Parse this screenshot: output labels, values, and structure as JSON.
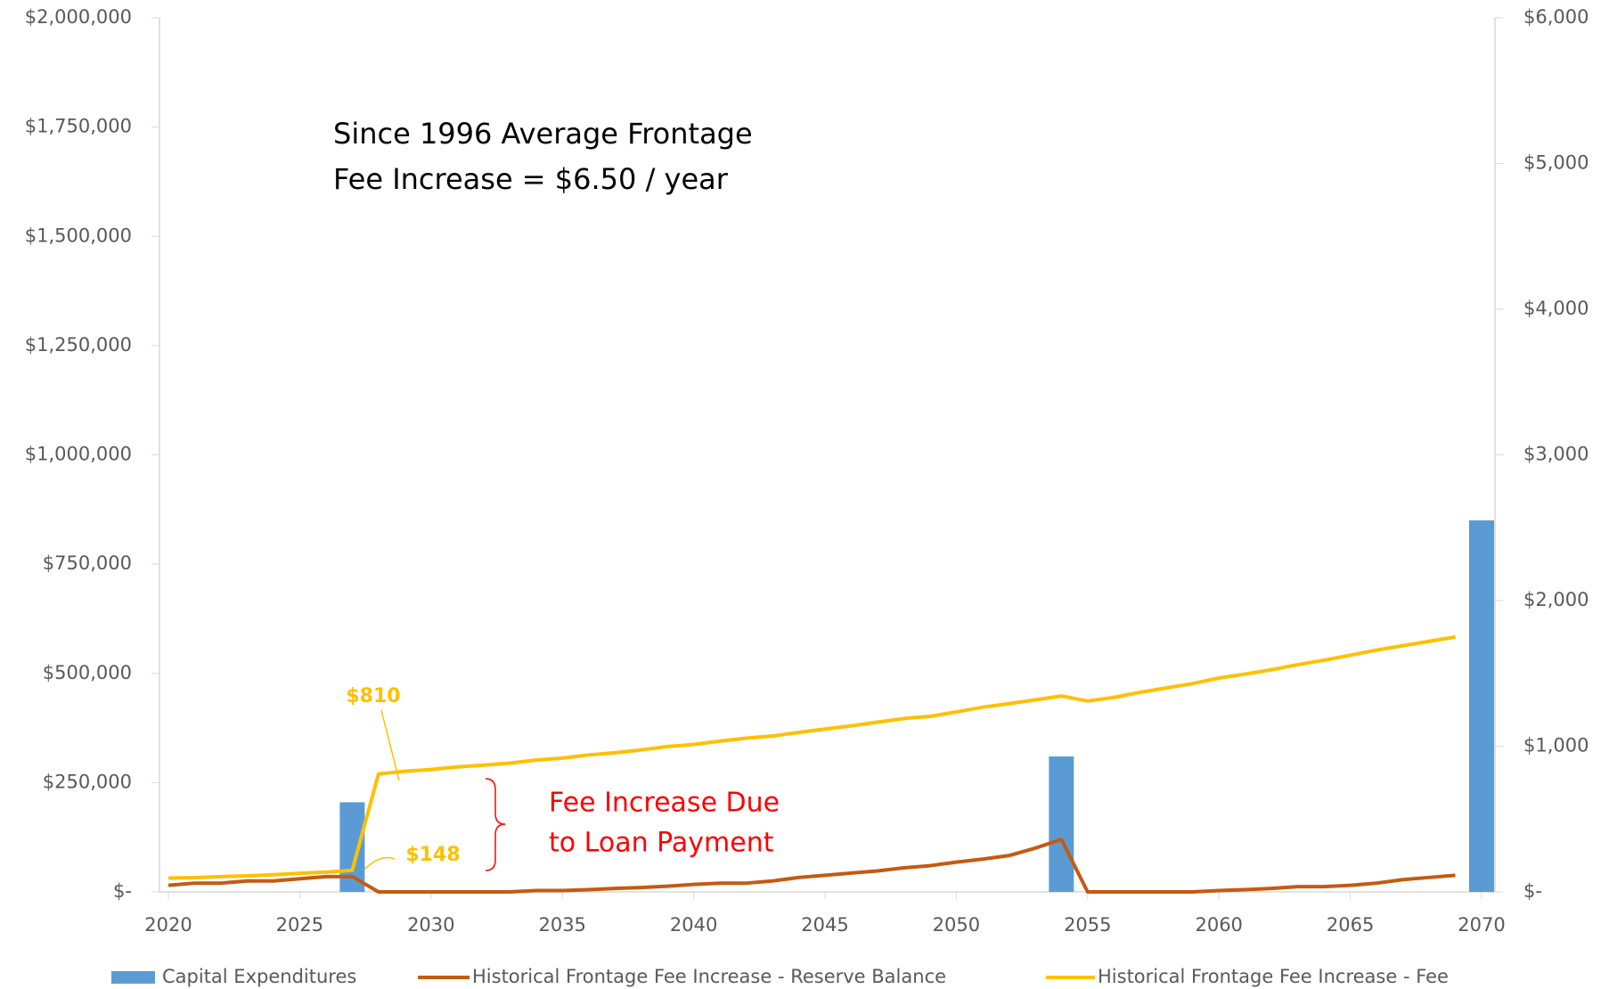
{
  "chart_data": {
    "type": "bar-line",
    "annotations": [
      [
        "Since 1996 Average Frontage",
        "Fee Increase = $6.50 / year"
      ],
      [
        "Fee Increase Due",
        "to Loan Payment"
      ]
    ],
    "xlim": [
      2020,
      2070
    ],
    "xticks": [
      2020,
      2025,
      2030,
      2035,
      2040,
      2045,
      2050,
      2055,
      2060,
      2065,
      2070
    ],
    "ylim": [
      0,
      2000000
    ],
    "yticks": [
      {
        "value": 0,
        "label": "$-"
      },
      {
        "value": 250000,
        "label": "$250,000"
      },
      {
        "value": 500000,
        "label": "$500,000"
      },
      {
        "value": 750000,
        "label": "$750,000"
      },
      {
        "value": 1000000,
        "label": "$1,000,000"
      },
      {
        "value": 1250000,
        "label": "$1,250,000"
      },
      {
        "value": 1500000,
        "label": "$1,500,000"
      },
      {
        "value": 1750000,
        "label": "$1,750,000"
      },
      {
        "value": 2000000,
        "label": "$2,000,000"
      }
    ],
    "y2lim": [
      0,
      6000
    ],
    "y2ticks": [
      {
        "value": 0,
        "label": "$-"
      },
      {
        "value": 1000,
        "label": "$1,000"
      },
      {
        "value": 2000,
        "label": "$2,000"
      },
      {
        "value": 3000,
        "label": "$3,000"
      },
      {
        "value": 4000,
        "label": "$4,000"
      },
      {
        "value": 5000,
        "label": "$5,000"
      },
      {
        "value": 6000,
        "label": "$6,000"
      }
    ],
    "legend": "bottom",
    "series": [
      {
        "name": "Capital Expenditures",
        "type": "bar",
        "color": "#5b9bd5",
        "x": [
          2027,
          2054,
          2070
        ],
        "values": [
          205000,
          310000,
          850000
        ]
      },
      {
        "name": "Historical Frontage Fee Increase - Reserve Balance",
        "type": "line",
        "color": "#c55a11",
        "x": [
          2020,
          2021,
          2022,
          2023,
          2024,
          2025,
          2026,
          2027,
          2028,
          2029,
          2030,
          2031,
          2032,
          2033,
          2034,
          2035,
          2036,
          2037,
          2038,
          2039,
          2040,
          2041,
          2042,
          2043,
          2044,
          2045,
          2046,
          2047,
          2048,
          2049,
          2050,
          2051,
          2052,
          2053,
          2054,
          2055,
          2056,
          2057,
          2058,
          2059,
          2060,
          2061,
          2062,
          2063,
          2064,
          2065,
          2066,
          2067,
          2068,
          2069
        ],
        "values": [
          15000,
          20000,
          20000,
          25000,
          25000,
          30000,
          35000,
          35000,
          0,
          0,
          0,
          0,
          0,
          0,
          3000,
          3000,
          5000,
          8000,
          10000,
          13000,
          17000,
          20000,
          20000,
          25000,
          33000,
          38000,
          43000,
          48000,
          55000,
          60000,
          68000,
          75000,
          83000,
          100000,
          120000,
          0,
          0,
          0,
          0,
          0,
          3000,
          5000,
          8000,
          12000,
          12000,
          15000,
          20000,
          28000,
          33000,
          38000
        ]
      },
      {
        "name": "Historical Frontage Fee Increase - Fee",
        "type": "line",
        "axis": "y2",
        "color": "#ffc000",
        "x": [
          2020,
          2021,
          2022,
          2023,
          2024,
          2025,
          2026,
          2027,
          2028,
          2029,
          2030,
          2031,
          2032,
          2033,
          2034,
          2035,
          2036,
          2037,
          2038,
          2039,
          2040,
          2041,
          2042,
          2043,
          2044,
          2045,
          2046,
          2047,
          2048,
          2049,
          2050,
          2051,
          2052,
          2053,
          2054,
          2055,
          2056,
          2057,
          2058,
          2059,
          2060,
          2061,
          2062,
          2063,
          2064,
          2065,
          2066,
          2067,
          2068,
          2069
        ],
        "values": [
          95,
          98,
          105,
          110,
          118,
          128,
          135,
          148,
          810,
          828,
          840,
          858,
          870,
          884,
          905,
          918,
          940,
          955,
          975,
          998,
          1012,
          1035,
          1055,
          1070,
          1095,
          1118,
          1140,
          1165,
          1190,
          1205,
          1235,
          1268,
          1292,
          1318,
          1345,
          1310,
          1335,
          1370,
          1400,
          1430,
          1468,
          1495,
          1525,
          1560,
          1590,
          1625,
          1660,
          1690,
          1720,
          1750
        ],
        "value_labels": [
          null,
          null,
          null,
          null,
          null,
          null,
          null,
          "$148",
          "$810",
          null,
          null,
          null,
          null,
          null,
          null,
          null,
          null,
          null,
          null,
          null,
          null,
          null,
          null,
          null,
          null,
          null,
          null,
          null,
          null,
          null,
          null,
          null,
          null,
          null,
          null,
          null,
          null,
          null,
          null,
          null,
          null,
          null,
          null,
          null,
          null,
          null,
          null,
          null,
          null,
          null
        ]
      }
    ]
  }
}
